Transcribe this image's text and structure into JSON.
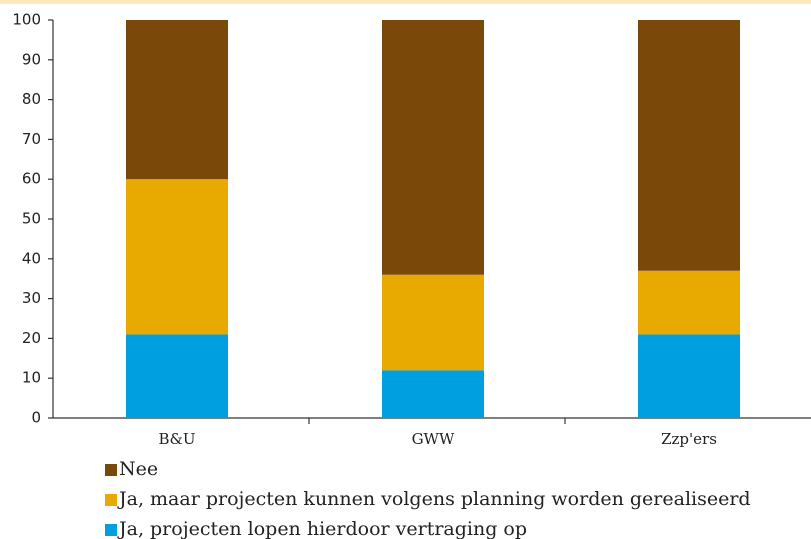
{
  "chart_data": {
    "type": "stacked_bar",
    "categories": [
      "B&U",
      "GWW",
      "Zzp'ers"
    ],
    "series": [
      {
        "name": "Ja, projecten lopen hierdoor vertraging op",
        "color": "#009fdf",
        "values": [
          21,
          12,
          21
        ]
      },
      {
        "name": "Ja, maar projecten kunnen volgens planning worden gerealiseerd",
        "color": "#e8a900",
        "values": [
          39,
          24,
          16
        ]
      },
      {
        "name": "Nee",
        "color": "#7a4808",
        "values": [
          40,
          64,
          63
        ]
      }
    ],
    "ylim": [
      0,
      100
    ],
    "yticks": [
      0,
      10,
      20,
      30,
      40,
      50,
      60,
      70,
      80,
      90,
      100
    ]
  }
}
